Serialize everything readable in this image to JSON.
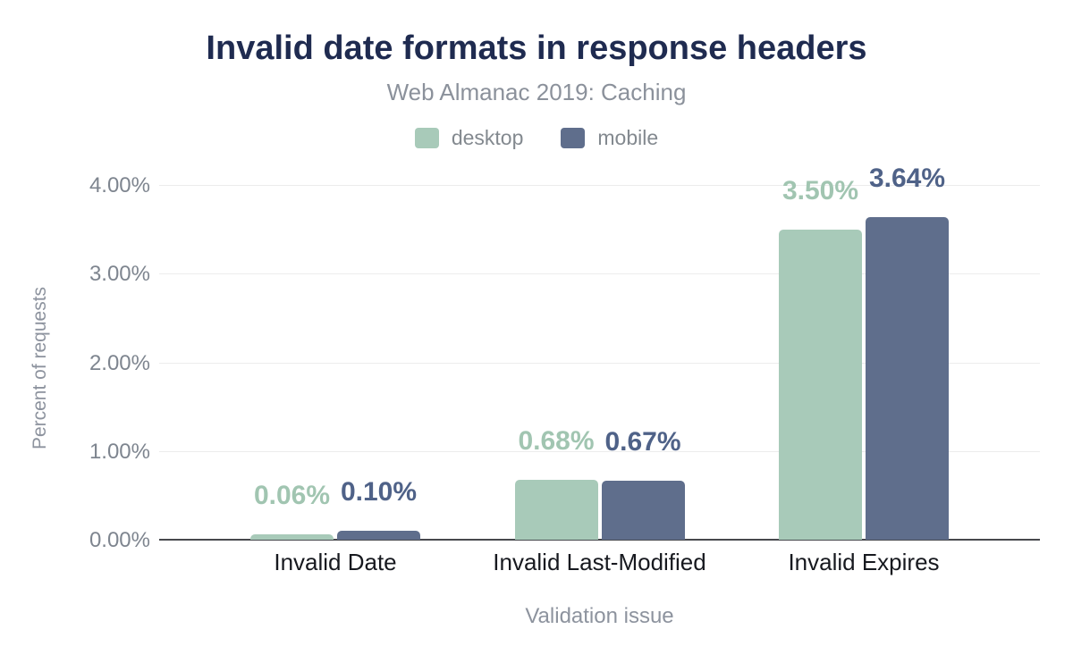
{
  "chart_data": {
    "type": "bar",
    "title": "Invalid date formats in response headers",
    "subtitle": "Web Almanac 2019: Caching",
    "xlabel": "Validation issue",
    "ylabel": "Percent of requests",
    "categories": [
      "Invalid Date",
      "Invalid Last-Modified",
      "Invalid Expires"
    ],
    "series": [
      {
        "name": "desktop",
        "color": "#a8cab9",
        "label_color": "#a1c5b1",
        "values": [
          0.06,
          0.68,
          3.5
        ],
        "labels": [
          "0.06%",
          "0.68%",
          "3.50%"
        ]
      },
      {
        "name": "mobile",
        "color": "#5f6e8c",
        "label_color": "#4f6288",
        "values": [
          0.1,
          0.67,
          3.64
        ],
        "labels": [
          "0.10%",
          "0.67%",
          "3.64%"
        ]
      }
    ],
    "ylim": [
      0,
      4
    ],
    "yticks": [
      "0.00%",
      "1.00%",
      "2.00%",
      "3.00%",
      "4.00%"
    ],
    "grid": true,
    "legend_position": "top"
  },
  "colors": {
    "background": "#ffffff",
    "title": "#1f2b50",
    "subtitle": "#8b919b",
    "tick_text": "#7e858f",
    "category_text": "#17191f",
    "gridline": "#ececec",
    "axis_line": "#47484d"
  }
}
